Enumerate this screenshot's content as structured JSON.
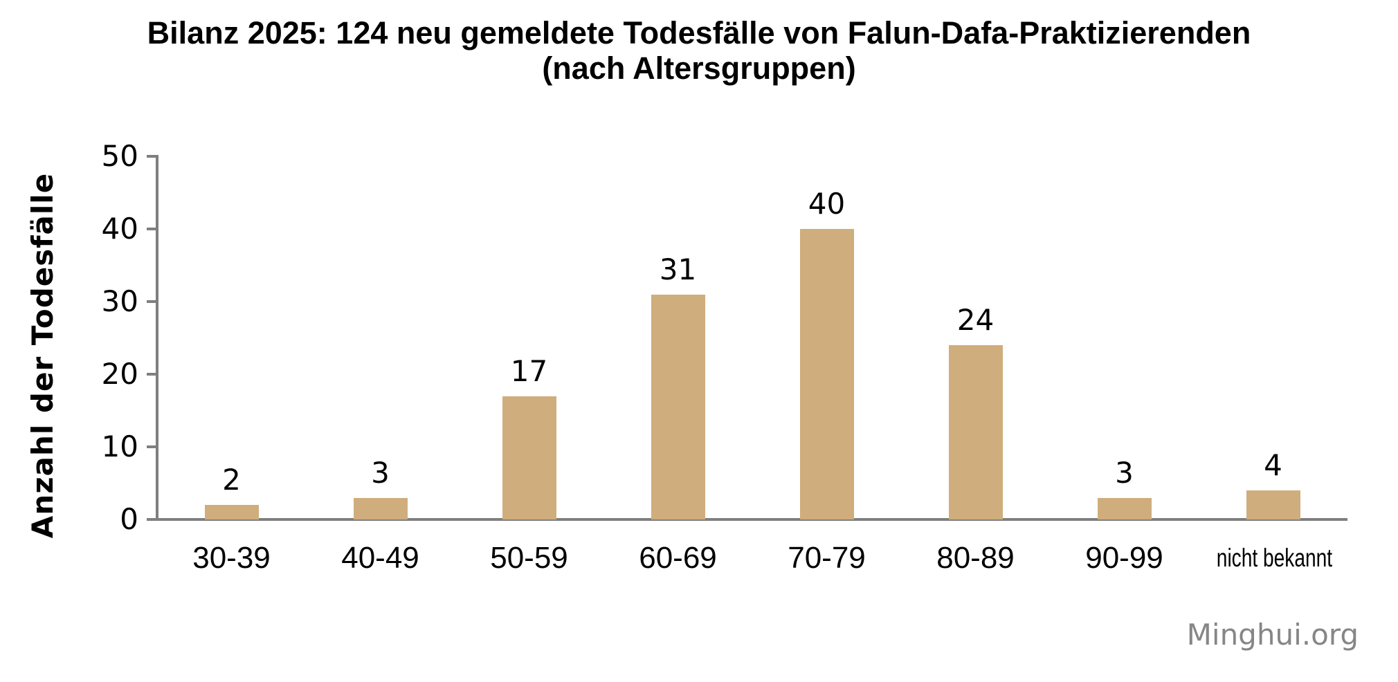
{
  "title": {
    "line1": "Bilanz 2025: 124 neu gemeldete Todesfälle von Falun-Dafa-Praktizierenden",
    "line2": "(nach Altersgruppen)"
  },
  "watermark": "Minghui.org",
  "colors": {
    "background": "#FFFFFF",
    "text": "#000000",
    "bar": "#CFAD7C",
    "axis": "#7F7F7F",
    "watermark": "#868686"
  },
  "chart_data": {
    "type": "bar",
    "title": "Bilanz 2025: 124 neu gemeldete Todesfälle von Falun-Dafa-Praktizierenden (nach Altersgruppen)",
    "categories": [
      "30-39",
      "40-49",
      "50-59",
      "60-69",
      "70-79",
      "80-89",
      "90-99",
      "nicht bekannt"
    ],
    "values": [
      2,
      3,
      17,
      31,
      40,
      24,
      3,
      4
    ],
    "data_labels": [
      "2",
      "3",
      "17",
      "31",
      "40",
      "24",
      "3",
      "4"
    ],
    "total": 124,
    "xlabel": "",
    "ylabel": "Anzahl der Todesfälle",
    "ylim": [
      0,
      50
    ],
    "yticks": [
      0,
      10,
      20,
      30,
      40,
      50
    ],
    "grid": false,
    "legend": false,
    "bar_color": "#CFAD7C"
  }
}
